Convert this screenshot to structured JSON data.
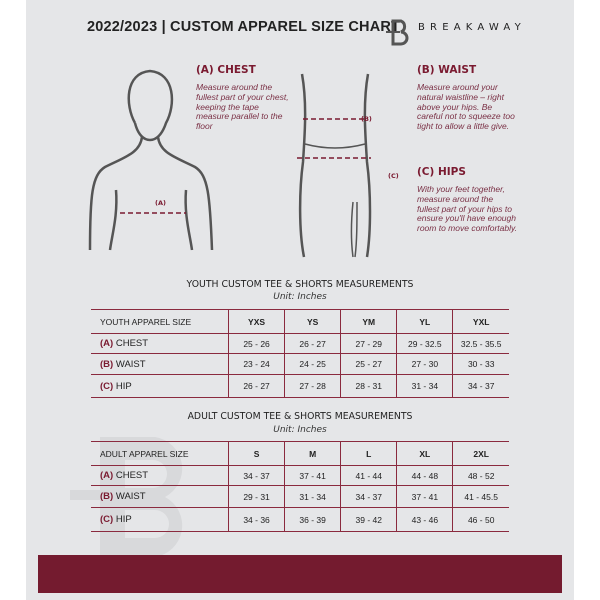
{
  "header": {
    "title": "2022/2023  |  CUSTOM APPAREL SIZE CHART",
    "brand": "BREAKAWAY"
  },
  "guide": {
    "chest": {
      "label": "(A) CHEST",
      "marker": "(A)",
      "text": "Measure around the fullest part of your chest, keeping the tape measure parallel to the floor"
    },
    "waist": {
      "label": "(B) WAIST",
      "marker": "(B)",
      "text": "Measure around your natural waistline – right above your hips. Be careful not to squeeze too tight to allow a little give."
    },
    "hips": {
      "label": "(C) HIPS",
      "marker": "(C)",
      "text": "With your feet together, measure around the fullest part of your hips to ensure you'll have enough room to move comfortably."
    }
  },
  "youth": {
    "title": "YOUTH CUSTOM TEE & SHORTS MEASUREMENTS",
    "unit": "Unit: Inches",
    "header": "YOUTH APPAREL SIZE",
    "sizes": [
      "YXS",
      "YS",
      "YM",
      "YL",
      "YXL"
    ],
    "rows": [
      {
        "letter": "(A)",
        "name": "CHEST",
        "values": [
          "25 - 26",
          "26 - 27",
          "27 - 29",
          "29 - 32.5",
          "32.5 - 35.5"
        ]
      },
      {
        "letter": "(B)",
        "name": "WAIST",
        "values": [
          "23 - 24",
          "24 - 25",
          "25 - 27",
          "27 - 30",
          "30 - 33"
        ]
      },
      {
        "letter": "(C)",
        "name": "HIP",
        "values": [
          "26 - 27",
          "27 - 28",
          "28 - 31",
          "31 - 34",
          "34 - 37"
        ]
      }
    ]
  },
  "adult": {
    "title": "ADULT CUSTOM TEE & SHORTS MEASUREMENTS",
    "unit": "Unit: Inches",
    "header": "ADULT APPAREL SIZE",
    "sizes": [
      "S",
      "M",
      "L",
      "XL",
      "2XL"
    ],
    "rows": [
      {
        "letter": "(A)",
        "name": "CHEST",
        "values": [
          "34 - 37",
          "37 - 41",
          "41 - 44",
          "44 - 48",
          "48 - 52"
        ]
      },
      {
        "letter": "(B)",
        "name": "WAIST",
        "values": [
          "29 - 31",
          "31 - 34",
          "34 - 37",
          "37 - 41",
          "41 - 45.5"
        ]
      },
      {
        "letter": "(C)",
        "name": "HIP",
        "values": [
          "34 - 36",
          "36 - 39",
          "39 - 42",
          "43 - 46",
          "46 - 50"
        ]
      }
    ]
  },
  "colors": {
    "accent": "#741b2f",
    "background": "#e5e6e8"
  }
}
